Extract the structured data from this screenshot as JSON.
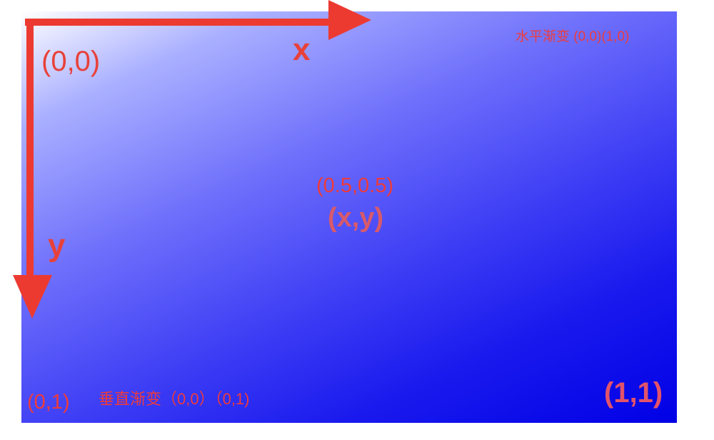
{
  "labels": {
    "origin": "(0,0)",
    "x_axis": "x",
    "y_axis": "y",
    "horizontal_gradient": "水平渐变 (0,0)(1,0)",
    "center_coord": "(0.5,0.5)",
    "center_xy": "(x,y)",
    "bottom_left": "(0,1)",
    "vertical_gradient": "垂直渐变（0,0）（0,1)",
    "bottom_right": "(1,1)"
  },
  "colors": {
    "gradient_start": "#ffffff",
    "gradient_end": "#0000e6",
    "axis_arrow": "#ec3a31",
    "label_text": "#ee3b3b"
  }
}
